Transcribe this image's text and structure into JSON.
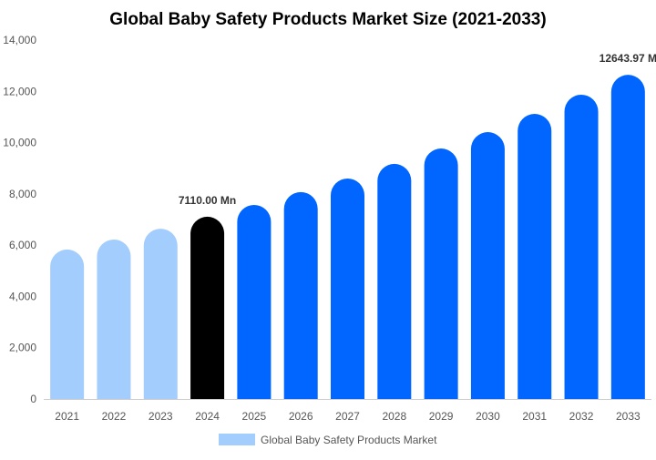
{
  "chart_data": {
    "type": "bar",
    "title": "Global Baby Safety Products Market Size (2021-2033)",
    "xlabel": "",
    "ylabel": "",
    "ylim": [
      0,
      14000
    ],
    "yticks": [
      0,
      2000,
      4000,
      6000,
      8000,
      10000,
      12000,
      14000
    ],
    "ytick_labels": [
      "0",
      "2,000",
      "4,000",
      "6,000",
      "8,000",
      "10,000",
      "12,000",
      "14,000"
    ],
    "grid": false,
    "legend_position": "bottom",
    "categories": [
      "2021",
      "2022",
      "2023",
      "2024",
      "2025",
      "2026",
      "2027",
      "2028",
      "2029",
      "2030",
      "2031",
      "2032",
      "2033"
    ],
    "series": [
      {
        "name": "Global Baby Safety Products Market",
        "values": [
          5830,
          6220,
          6640,
          7110,
          7570,
          8070,
          8600,
          9170,
          9770,
          10410,
          11120,
          11870,
          12643.97
        ]
      }
    ],
    "bar_colors": [
      "#a3cdfd",
      "#a3cdfd",
      "#a3cdfd",
      "#000000",
      "#0066ff",
      "#0066ff",
      "#0066ff",
      "#0066ff",
      "#0066ff",
      "#0066ff",
      "#0066ff",
      "#0066ff",
      "#0066ff"
    ],
    "legend_color": "#a3cdfd",
    "annotations": [
      {
        "category": "2024",
        "text": "7110.00 Mn"
      },
      {
        "category": "2033",
        "text": "12643.97 M"
      }
    ]
  }
}
